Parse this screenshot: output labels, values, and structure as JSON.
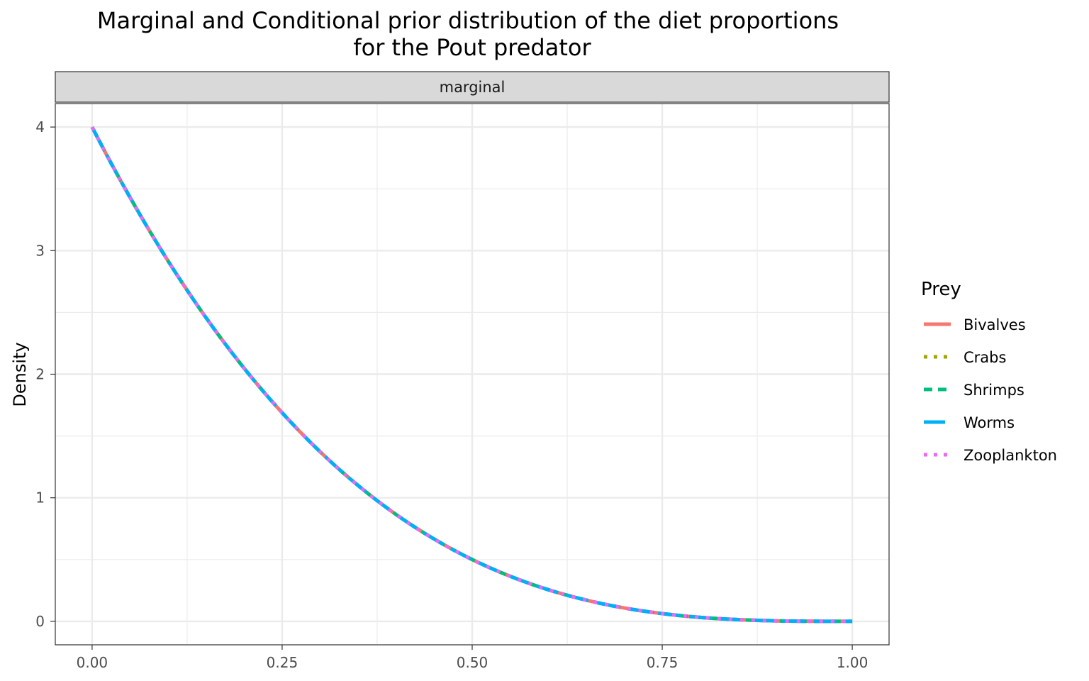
{
  "chart_data": {
    "type": "line",
    "title_line1": "Marginal and Conditional prior distribution of the diet proportions",
    "title_line2": "for the Pout predator",
    "facet_label": "marginal",
    "xlabel": "",
    "ylabel": "Density",
    "xlim": [
      -0.0484,
      1.0484
    ],
    "ylim": [
      -0.19,
      4.19
    ],
    "x_ticks": [
      0.0,
      0.25,
      0.5,
      0.75,
      1.0
    ],
    "x_tick_labels": [
      "0.00",
      "0.25",
      "0.50",
      "0.75",
      "1.00"
    ],
    "y_ticks": [
      0,
      1,
      2,
      3,
      4
    ],
    "y_tick_labels": [
      "0",
      "1",
      "2",
      "3",
      "4"
    ],
    "grid": true,
    "legend_title": "Prey",
    "legend_position": "right",
    "x": [
      0.0,
      0.05,
      0.1,
      0.15,
      0.2,
      0.25,
      0.3,
      0.35,
      0.4,
      0.45,
      0.5,
      0.55,
      0.6,
      0.65,
      0.7,
      0.75,
      0.8,
      0.85,
      0.9,
      0.95,
      1.0
    ],
    "series": [
      {
        "name": "Bivalves",
        "color": "#F8766D",
        "dash": "solid",
        "values": [
          4.0,
          3.43,
          2.916,
          2.456,
          2.048,
          1.688,
          1.372,
          1.099,
          0.864,
          0.666,
          0.5,
          0.365,
          0.256,
          0.172,
          0.108,
          0.063,
          0.032,
          0.014,
          0.004,
          0.0005,
          0.0
        ]
      },
      {
        "name": "Crabs",
        "color": "#A3A500",
        "dash": "dotted",
        "values": [
          4.0,
          3.43,
          2.916,
          2.456,
          2.048,
          1.688,
          1.372,
          1.099,
          0.864,
          0.666,
          0.5,
          0.365,
          0.256,
          0.172,
          0.108,
          0.063,
          0.032,
          0.014,
          0.004,
          0.0005,
          0.0
        ]
      },
      {
        "name": "Shrimps",
        "color": "#00BF7D",
        "dash": "dashed",
        "values": [
          4.0,
          3.43,
          2.916,
          2.456,
          2.048,
          1.688,
          1.372,
          1.099,
          0.864,
          0.666,
          0.5,
          0.365,
          0.256,
          0.172,
          0.108,
          0.063,
          0.032,
          0.014,
          0.004,
          0.0005,
          0.0
        ]
      },
      {
        "name": "Worms",
        "color": "#00B0F6",
        "dash": "longdash",
        "values": [
          4.0,
          3.43,
          2.916,
          2.456,
          2.048,
          1.688,
          1.372,
          1.099,
          0.864,
          0.666,
          0.5,
          0.365,
          0.256,
          0.172,
          0.108,
          0.063,
          0.032,
          0.014,
          0.004,
          0.0005,
          0.0
        ]
      },
      {
        "name": "Zooplankton",
        "color": "#E76BF3",
        "dash": "dotted",
        "values": [
          4.0,
          3.43,
          2.916,
          2.456,
          2.048,
          1.688,
          1.372,
          1.099,
          0.864,
          0.666,
          0.5,
          0.365,
          0.256,
          0.172,
          0.108,
          0.063,
          0.032,
          0.014,
          0.004,
          0.0005,
          0.0
        ]
      }
    ]
  }
}
